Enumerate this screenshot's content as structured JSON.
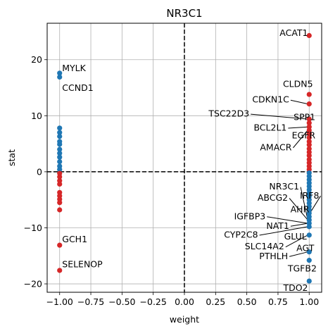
{
  "chart_data": {
    "type": "scatter",
    "title": "NR3C1",
    "xlabel": "weight",
    "ylabel": "stat",
    "xlim": [
      -1.1,
      1.1
    ],
    "ylim": [
      -21.5,
      26.5
    ],
    "xticks": [
      -1.0,
      -0.75,
      -0.5,
      -0.25,
      0.0,
      0.25,
      0.5,
      0.75,
      1.0
    ],
    "xtick_labels": [
      "−1.00",
      "−0.75",
      "−0.50",
      "−0.25",
      "0.00",
      "0.25",
      "0.50",
      "0.75",
      "1.00"
    ],
    "yticks": [
      -20,
      -10,
      0,
      10,
      20
    ],
    "ytick_labels": [
      "−20",
      "−10",
      "0",
      "10",
      "20"
    ],
    "grid": true,
    "colors": {
      "positive": "#d62728",
      "negative": "#1f77b4"
    },
    "reference_lines": {
      "x": 0,
      "y": 0,
      "style": "dashed"
    },
    "points": [
      {
        "x": -1,
        "y": 17.6,
        "c": "negative"
      },
      {
        "x": -1,
        "y": 16.9,
        "c": "negative"
      },
      {
        "x": -1,
        "y": 7.8,
        "c": "negative"
      },
      {
        "x": -1,
        "y": 7.0,
        "c": "negative"
      },
      {
        "x": -1,
        "y": 6.3,
        "c": "negative"
      },
      {
        "x": -1,
        "y": 5.4,
        "c": "negative"
      },
      {
        "x": -1,
        "y": 4.9,
        "c": "negative"
      },
      {
        "x": -1,
        "y": 4.0,
        "c": "negative"
      },
      {
        "x": -1,
        "y": 3.3,
        "c": "negative"
      },
      {
        "x": -1,
        "y": 2.6,
        "c": "negative"
      },
      {
        "x": -1,
        "y": 1.8,
        "c": "negative"
      },
      {
        "x": -1,
        "y": 1.0,
        "c": "negative"
      },
      {
        "x": -1,
        "y": 0.4,
        "c": "negative"
      },
      {
        "x": -1,
        "y": -0.3,
        "c": "positive"
      },
      {
        "x": -1,
        "y": -0.9,
        "c": "positive"
      },
      {
        "x": -1,
        "y": -1.6,
        "c": "positive"
      },
      {
        "x": -1,
        "y": -2.2,
        "c": "positive"
      },
      {
        "x": -1,
        "y": -3.7,
        "c": "positive"
      },
      {
        "x": -1,
        "y": -4.3,
        "c": "positive"
      },
      {
        "x": -1,
        "y": -4.9,
        "c": "positive"
      },
      {
        "x": -1,
        "y": -5.5,
        "c": "positive"
      },
      {
        "x": -1,
        "y": -6.8,
        "c": "positive"
      },
      {
        "x": -1,
        "y": -13.1,
        "c": "positive"
      },
      {
        "x": -1,
        "y": -17.6,
        "c": "positive"
      },
      {
        "x": 1,
        "y": 24.3,
        "c": "positive"
      },
      {
        "x": 1,
        "y": 13.8,
        "c": "positive"
      },
      {
        "x": 1,
        "y": 12.1,
        "c": "positive"
      },
      {
        "x": 1,
        "y": 9.4,
        "c": "positive"
      },
      {
        "x": 1,
        "y": 8.7,
        "c": "positive"
      },
      {
        "x": 1,
        "y": 8.0,
        "c": "positive"
      },
      {
        "x": 1,
        "y": 7.4,
        "c": "positive"
      },
      {
        "x": 1,
        "y": 6.8,
        "c": "positive"
      },
      {
        "x": 1,
        "y": 6.1,
        "c": "positive"
      },
      {
        "x": 1,
        "y": 5.4,
        "c": "positive"
      },
      {
        "x": 1,
        "y": 4.8,
        "c": "positive"
      },
      {
        "x": 1,
        "y": 4.1,
        "c": "positive"
      },
      {
        "x": 1,
        "y": 3.5,
        "c": "positive"
      },
      {
        "x": 1,
        "y": 2.9,
        "c": "positive"
      },
      {
        "x": 1,
        "y": 2.2,
        "c": "positive"
      },
      {
        "x": 1,
        "y": 1.6,
        "c": "positive"
      },
      {
        "x": 1,
        "y": 1.0,
        "c": "positive"
      },
      {
        "x": 1,
        "y": 0.4,
        "c": "positive"
      },
      {
        "x": 1,
        "y": -0.2,
        "c": "negative"
      },
      {
        "x": 1,
        "y": -0.8,
        "c": "negative"
      },
      {
        "x": 1,
        "y": -1.4,
        "c": "negative"
      },
      {
        "x": 1,
        "y": -2.0,
        "c": "negative"
      },
      {
        "x": 1,
        "y": -2.6,
        "c": "negative"
      },
      {
        "x": 1,
        "y": -3.2,
        "c": "negative"
      },
      {
        "x": 1,
        "y": -3.8,
        "c": "negative"
      },
      {
        "x": 1,
        "y": -4.4,
        "c": "negative"
      },
      {
        "x": 1,
        "y": -5.0,
        "c": "negative"
      },
      {
        "x": 1,
        "y": -5.6,
        "c": "negative"
      },
      {
        "x": 1,
        "y": -6.2,
        "c": "negative"
      },
      {
        "x": 1,
        "y": -6.8,
        "c": "negative"
      },
      {
        "x": 1,
        "y": -7.4,
        "c": "negative"
      },
      {
        "x": 1,
        "y": -8.0,
        "c": "negative"
      },
      {
        "x": 1,
        "y": -8.6,
        "c": "negative"
      },
      {
        "x": 1,
        "y": -9.2,
        "c": "negative"
      },
      {
        "x": 1,
        "y": -9.8,
        "c": "negative"
      },
      {
        "x": 1,
        "y": -11.3,
        "c": "negative"
      },
      {
        "x": 1,
        "y": -14.3,
        "c": "negative"
      },
      {
        "x": 1,
        "y": -15.8,
        "c": "negative"
      },
      {
        "x": 1,
        "y": -19.5,
        "c": "negative"
      }
    ],
    "annotations": [
      {
        "text": "MYLK",
        "x": -1.0,
        "y": 17.6,
        "tx": -0.98,
        "ty": 18.5,
        "ha": "start"
      },
      {
        "text": "CCND1",
        "x": -1.0,
        "y": 16.9,
        "tx": -0.98,
        "ty": 15.0,
        "ha": "start"
      },
      {
        "text": "GCH1",
        "x": -1.0,
        "y": -13.1,
        "tx": -0.98,
        "ty": -12.0,
        "ha": "start"
      },
      {
        "text": "SELENOP",
        "x": -1.0,
        "y": -17.6,
        "tx": -0.98,
        "ty": -16.5,
        "ha": "start"
      },
      {
        "text": "ACAT1",
        "x": 1.0,
        "y": 24.3,
        "tx": 0.99,
        "ty": 24.8,
        "ha": "end"
      },
      {
        "text": "CLDN5",
        "x": 1.0,
        "y": 13.8,
        "tx": 1.03,
        "ty": 15.7,
        "ha": "end",
        "leader": false
      },
      {
        "text": "CDKN1C",
        "x": 1.0,
        "y": 12.1,
        "tx": 0.84,
        "ty": 12.9,
        "ha": "end",
        "leader": true
      },
      {
        "text": "TSC22D3",
        "x": 1.0,
        "y": 9.4,
        "tx": 0.52,
        "ty": 10.4,
        "ha": "end",
        "leader": true
      },
      {
        "text": "SPP1",
        "x": 1.0,
        "y": 8.7,
        "tx": 1.05,
        "ty": 9.8,
        "ha": "end",
        "leader": false
      },
      {
        "text": "BCL2L1",
        "x": 1.0,
        "y": 8.0,
        "tx": 0.82,
        "ty": 7.9,
        "ha": "end",
        "leader": true
      },
      {
        "text": "EGFR",
        "x": 1.0,
        "y": 7.4,
        "tx": 1.05,
        "ty": 6.5,
        "ha": "end",
        "leader": false
      },
      {
        "text": "AMACR",
        "x": 1.0,
        "y": 7.4,
        "tx": 0.86,
        "ty": 4.4,
        "ha": "end",
        "leader": true
      },
      {
        "text": "NR3C1",
        "x": 1.0,
        "y": -8.6,
        "tx": 0.92,
        "ty": -2.6,
        "ha": "end",
        "leader": true
      },
      {
        "text": "IRF8",
        "x": 1.0,
        "y": -8.0,
        "tx": 1.08,
        "ty": -4.2,
        "ha": "end",
        "leader": true
      },
      {
        "text": "ABCG2",
        "x": 1.0,
        "y": -8.6,
        "tx": 0.83,
        "ty": -4.6,
        "ha": "end",
        "leader": true
      },
      {
        "text": "AHR",
        "x": 1.0,
        "y": -8.6,
        "tx": 1.0,
        "ty": -6.7,
        "ha": "end",
        "leader": true
      },
      {
        "text": "IGFBP3",
        "x": 1.0,
        "y": -9.2,
        "tx": 0.65,
        "ty": -7.9,
        "ha": "end",
        "leader": true
      },
      {
        "text": "NAT1",
        "x": 1.0,
        "y": -9.2,
        "tx": 0.84,
        "ty": -9.6,
        "ha": "end",
        "leader": true
      },
      {
        "text": "CYP2C8",
        "x": 1.0,
        "y": -9.8,
        "tx": 0.59,
        "ty": -11.2,
        "ha": "end",
        "leader": true
      },
      {
        "text": "GLUL",
        "x": 1.0,
        "y": -9.8,
        "tx": 0.98,
        "ty": -11.5,
        "ha": "end",
        "leader": false
      },
      {
        "text": "SLC14A2",
        "x": 1.0,
        "y": -11.3,
        "tx": 0.8,
        "ty": -13.3,
        "ha": "end",
        "leader": true
      },
      {
        "text": "AGT",
        "x": 1.0,
        "y": -11.3,
        "tx": 1.04,
        "ty": -13.6,
        "ha": "end",
        "leader": false
      },
      {
        "text": "PTHLH",
        "x": 1.0,
        "y": -14.3,
        "tx": 0.83,
        "ty": -15.0,
        "ha": "end",
        "leader": true
      },
      {
        "text": "TGFB2",
        "x": 1.0,
        "y": -15.8,
        "tx": 1.06,
        "ty": -17.2,
        "ha": "end",
        "leader": false
      },
      {
        "text": "TDO2",
        "x": 1.0,
        "y": -19.5,
        "tx": 0.99,
        "ty": -20.7,
        "ha": "end",
        "leader": false
      }
    ]
  }
}
